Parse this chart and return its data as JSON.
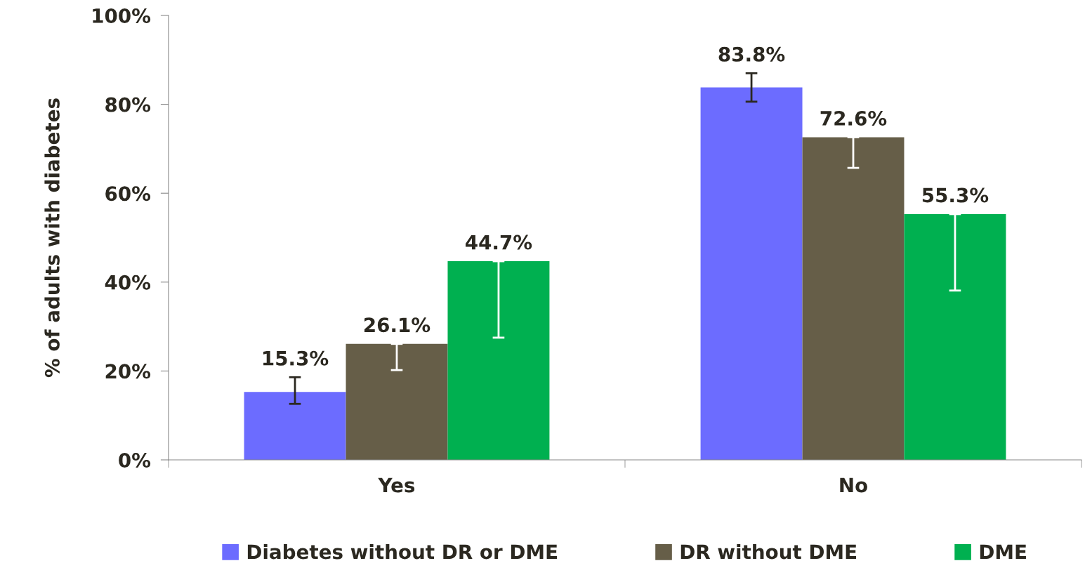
{
  "chart_data": {
    "type": "bar",
    "ylabel": "% of adults with diabetes",
    "categories": [
      "Yes",
      "No"
    ],
    "series": [
      {
        "name": "Diabetes without DR or DME",
        "color": "#6c6cff",
        "values": [
          15.3,
          83.8
        ],
        "errors": [
          [
            12.6,
            18.6
          ],
          [
            80.6,
            87.0
          ]
        ],
        "value_labels": [
          "15.3%",
          "83.8%"
        ]
      },
      {
        "name": "DR without DME",
        "color": "#665e48",
        "values": [
          26.1,
          72.6
        ],
        "errors": [
          [
            20.2,
            26.1
          ],
          [
            65.7,
            72.6
          ]
        ],
        "value_labels": [
          "26.1%",
          "72.6%"
        ]
      },
      {
        "name": "DME",
        "color": "#00b050",
        "values": [
          44.7,
          55.3
        ],
        "errors": [
          [
            27.5,
            44.7
          ],
          [
            38.1,
            55.3
          ]
        ],
        "value_labels": [
          "44.7%",
          "55.3%"
        ]
      }
    ],
    "ylim": [
      0,
      100
    ],
    "yticks": [
      {
        "value": 0,
        "label": "0%"
      },
      {
        "value": 20,
        "label": "20%"
      },
      {
        "value": 40,
        "label": "40%"
      },
      {
        "value": 60,
        "label": "60%"
      },
      {
        "value": 80,
        "label": "80%"
      },
      {
        "value": 100,
        "label": "100%"
      }
    ],
    "grid": false,
    "legend": "bottom"
  }
}
